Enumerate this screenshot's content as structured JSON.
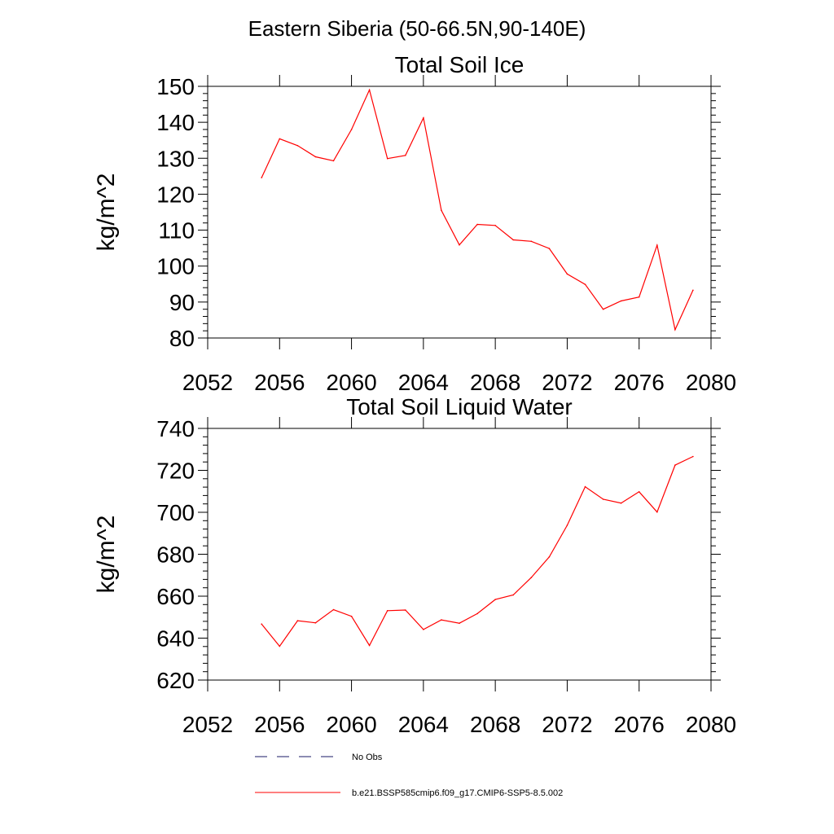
{
  "page": {
    "title": "Eastern Siberia (50-66.5N,90-140E)"
  },
  "legend": {
    "placement": "bottom",
    "entries": [
      {
        "label": "No Obs",
        "color": "#1a1a66",
        "style": "dashed"
      },
      {
        "label": "b.e21.BSSP585cmip6.f09_g17.CMIP6-SSP5-8.5.002",
        "color": "#ff0000",
        "style": "solid"
      }
    ]
  },
  "chart_data": [
    {
      "type": "line",
      "title": "Total Soil Ice",
      "xlabel": "",
      "ylabel": "kg/m^2",
      "xlim": [
        2052,
        2080
      ],
      "ylim": [
        80,
        150
      ],
      "xticks": [
        2052,
        2056,
        2060,
        2064,
        2068,
        2072,
        2076,
        2080
      ],
      "yticks": [
        80,
        90,
        100,
        110,
        120,
        130,
        140,
        150
      ],
      "grid": false,
      "series": [
        {
          "name": "b.e21.BSSP585cmip6.f09_g17.CMIP6-SSP5-8.5.002",
          "color": "#ff0000",
          "x": [
            2055,
            2056,
            2057,
            2058,
            2059,
            2060,
            2061,
            2062,
            2063,
            2064,
            2065,
            2066,
            2067,
            2068,
            2069,
            2070,
            2071,
            2072,
            2073,
            2074,
            2075,
            2076,
            2077,
            2078,
            2079
          ],
          "values": [
            124.6,
            135.4,
            133.5,
            130.4,
            129.3,
            138.0,
            149.0,
            129.9,
            130.8,
            141.2,
            115.5,
            105.9,
            111.6,
            111.3,
            107.3,
            106.9,
            104.9,
            97.8,
            94.9,
            88.0,
            90.3,
            91.4,
            105.8,
            82.3,
            93.3
          ]
        }
      ]
    },
    {
      "type": "line",
      "title": "Total Soil Liquid Water",
      "xlabel": "",
      "ylabel": "kg/m^2",
      "xlim": [
        2052,
        2080
      ],
      "ylim": [
        620,
        740
      ],
      "xticks": [
        2052,
        2056,
        2060,
        2064,
        2068,
        2072,
        2076,
        2080
      ],
      "yticks": [
        620,
        640,
        660,
        680,
        700,
        720,
        740
      ],
      "grid": false,
      "series": [
        {
          "name": "b.e21.BSSP585cmip6.f09_g17.CMIP6-SSP5-8.5.002",
          "color": "#ff0000",
          "x": [
            2055,
            2056,
            2057,
            2058,
            2059,
            2060,
            2061,
            2062,
            2063,
            2064,
            2065,
            2066,
            2067,
            2068,
            2069,
            2070,
            2071,
            2072,
            2073,
            2074,
            2075,
            2076,
            2077,
            2078,
            2079
          ],
          "values": [
            646.7,
            636.1,
            648.3,
            647.3,
            653.6,
            650.4,
            636.5,
            653.1,
            653.4,
            644.1,
            648.7,
            647.1,
            651.7,
            658.4,
            660.6,
            668.9,
            678.7,
            693.8,
            712.2,
            706.2,
            704.4,
            709.8,
            700.1,
            722.5,
            726.6
          ]
        }
      ]
    }
  ]
}
